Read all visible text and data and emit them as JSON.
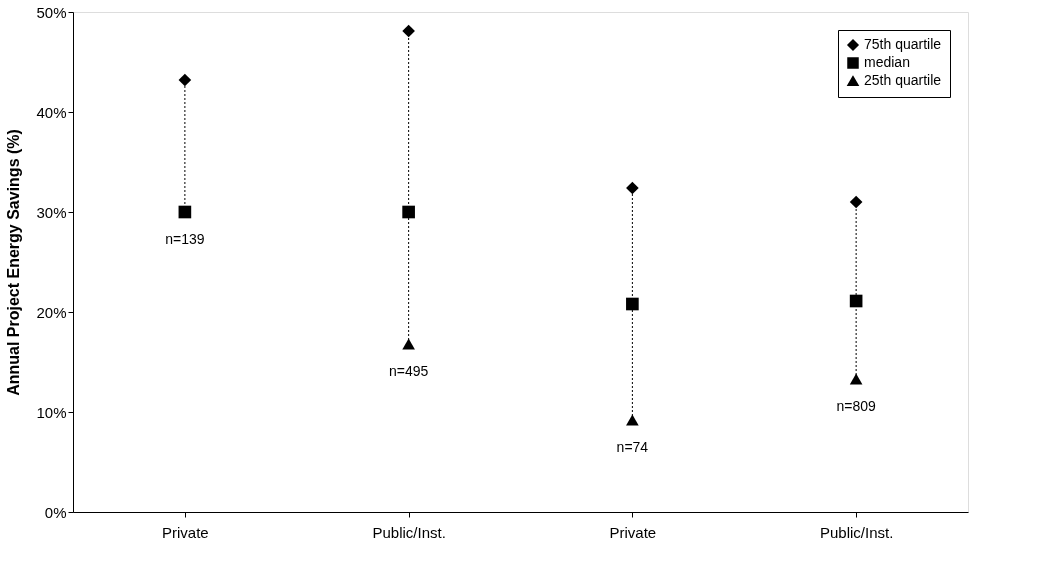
{
  "chart_data": {
    "type": "scatter",
    "ylabel": "Annual Project Energy Savings (%)",
    "categories": [
      "Private",
      "Public/Inst.",
      "Private",
      "Public/Inst."
    ],
    "series": [
      {
        "name": "75th quartile",
        "color": "#000000",
        "marker": "diamond",
        "values": [
          43.2,
          48.1,
          32.4,
          31.0
        ]
      },
      {
        "name": "median",
        "color": "#000000",
        "marker": "square",
        "values": [
          30.0,
          30.0,
          20.8,
          21.1
        ]
      },
      {
        "name": "25th quartile",
        "color": "#000000",
        "marker": "triangle",
        "values": [
          null,
          16.8,
          9.2,
          13.3
        ]
      }
    ],
    "ylim": [
      0,
      50
    ],
    "yticks": [
      {
        "value": 0,
        "label": "0%"
      },
      {
        "value": 10,
        "label": "10%"
      },
      {
        "value": 20,
        "label": "20%"
      },
      {
        "value": 30,
        "label": "30%"
      },
      {
        "value": 40,
        "label": "40%"
      },
      {
        "value": 50,
        "label": "50%"
      }
    ],
    "grid": false,
    "legend": "top right",
    "line_style": "dotted",
    "annotations": [
      "n=139",
      "n=495",
      "n=74",
      "n=809"
    ]
  }
}
